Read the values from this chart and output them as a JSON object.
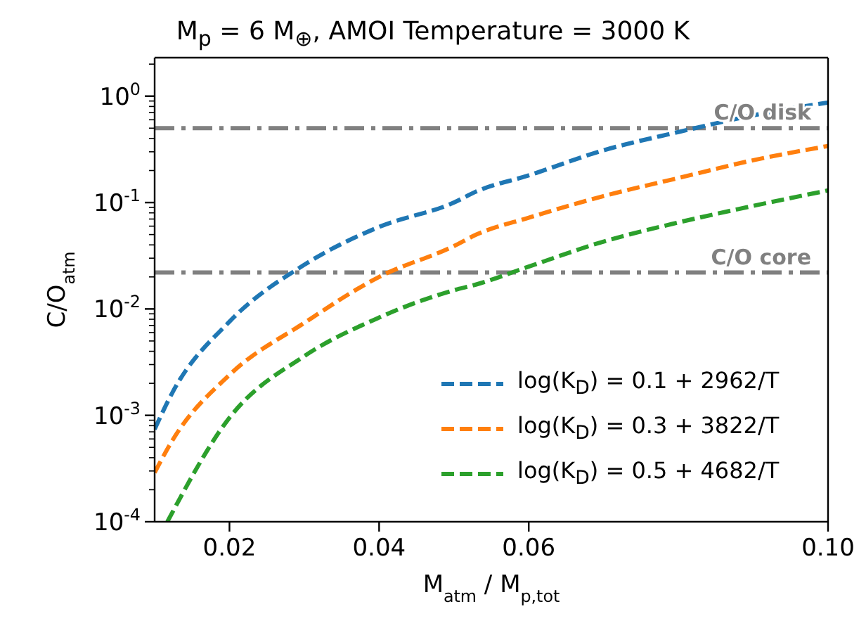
{
  "chart_data": {
    "type": "line",
    "title": "M$_{p}$ = 6 M$_{⊕}$, AMOI Temperature = 3000 K",
    "xlabel": "M$_{atm}$ / M$_{p,tot}$",
    "ylabel": "C/O$_{atm}$",
    "log": "y",
    "xlim": [
      0.01,
      0.1
    ],
    "ylim": [
      0.0001,
      2.3
    ],
    "xticks": [
      0.02,
      0.04,
      0.06,
      {
        "value": 0.1,
        "label": "0.10"
      }
    ],
    "yticks": [
      {
        "value": 0.0001,
        "label": "10$^{-4}$"
      },
      {
        "value": 0.0002,
        "label": null
      },
      {
        "value": 0.0003,
        "label": null
      },
      {
        "value": 0.0004,
        "label": null
      },
      {
        "value": 0.0005,
        "label": null
      },
      {
        "value": 0.0006,
        "label": null
      },
      {
        "value": 0.0007,
        "label": null
      },
      {
        "value": 0.0008,
        "label": null
      },
      {
        "value": 0.0009,
        "label": null
      },
      {
        "value": 0.001,
        "label": "10$^{-3}$"
      },
      {
        "value": 0.002,
        "label": null
      },
      {
        "value": 0.003,
        "label": null
      },
      {
        "value": 0.004,
        "label": null
      },
      {
        "value": 0.005,
        "label": null
      },
      {
        "value": 0.006,
        "label": null
      },
      {
        "value": 0.007,
        "label": null
      },
      {
        "value": 0.008,
        "label": null
      },
      {
        "value": 0.009,
        "label": null
      },
      {
        "value": 0.01,
        "label": "10$^{-2}$"
      },
      {
        "value": 0.02,
        "label": null
      },
      {
        "value": 0.03,
        "label": null
      },
      {
        "value": 0.04,
        "label": null
      },
      {
        "value": 0.05,
        "label": null
      },
      {
        "value": 0.06,
        "label": null
      },
      {
        "value": 0.07,
        "label": null
      },
      {
        "value": 0.08,
        "label": null
      },
      {
        "value": 0.09,
        "label": null
      },
      {
        "value": 0.1,
        "label": "10$^{-1}$"
      },
      {
        "value": 0.2,
        "label": null
      },
      {
        "value": 0.3,
        "label": null
      },
      {
        "value": 0.4,
        "label": null
      },
      {
        "value": 0.5,
        "label": null
      },
      {
        "value": 0.6,
        "label": null
      },
      {
        "value": 0.7,
        "label": null
      },
      {
        "value": 0.8,
        "label": null
      },
      {
        "value": 0.9,
        "label": null
      },
      {
        "value": 1,
        "label": "10$^{0}$"
      },
      {
        "value": 2,
        "label": null
      }
    ],
    "grid": false,
    "legend": "bottom right",
    "line_style": "dashed",
    "marker": "none",
    "series": [
      {
        "name": "log(K$_{D}$) = 0.1 + 2962/T",
        "color": "#1f77b4",
        "x": [
          0.01,
          0.0123,
          0.02,
          0.03,
          0.04,
          0.05,
          0.053,
          0.06,
          0.07,
          0.08,
          0.09,
          0.1
        ],
        "values": [
          0.00074,
          0.0016,
          0.0076,
          0.026,
          0.059,
          0.1,
          0.127,
          0.18,
          0.31,
          0.46,
          0.66,
          0.87
        ]
      },
      {
        "name": "log(K$_{D}$) = 0.3 + 3822/T",
        "color": "#ff7f0e",
        "x": [
          0.01,
          0.0123,
          0.02,
          0.03,
          0.04,
          0.05,
          0.053,
          0.06,
          0.07,
          0.08,
          0.09,
          0.1
        ],
        "values": [
          0.00029,
          0.00057,
          0.0024,
          0.0074,
          0.02,
          0.039,
          0.05,
          0.072,
          0.115,
          0.17,
          0.25,
          0.34
        ]
      },
      {
        "name": "log(K$_{D}$) = 0.5 + 4682/T",
        "color": "#2ca02c",
        "x": [
          0.0117,
          0.02,
          0.03,
          0.04,
          0.05,
          0.053,
          0.06,
          0.07,
          0.08,
          0.09,
          0.1
        ],
        "values": [
          0.0001,
          0.00095,
          0.0036,
          0.0083,
          0.015,
          0.017,
          0.025,
          0.043,
          0.065,
          0.093,
          0.13
        ]
      }
    ],
    "ref_lines": [
      {
        "axis": "y",
        "value": 0.5,
        "label": "C/O disk",
        "color": "#808080",
        "line_style": "dashdot"
      },
      {
        "axis": "y",
        "value": 0.022,
        "label": "C/O core",
        "color": "#808080",
        "line_style": "dashdot"
      }
    ]
  }
}
